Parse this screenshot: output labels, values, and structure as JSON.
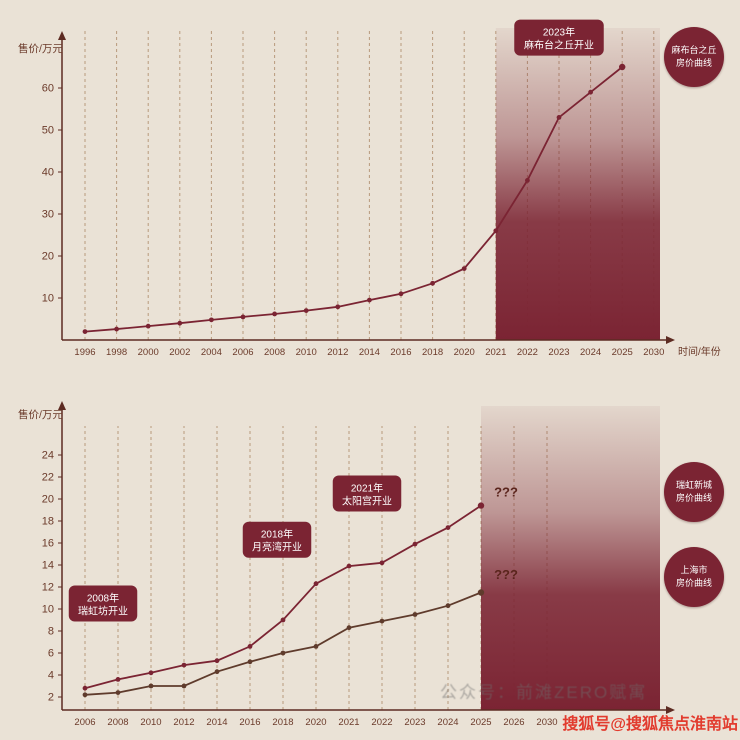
{
  "page": {
    "background": "#eae2d6"
  },
  "colors": {
    "maroon": "#7b2433",
    "brown": "#5f3b2c",
    "axis": "#5d2b22",
    "tick_text": "#6b3a2a",
    "gridline": "#a8835f",
    "watermark_red": "#e23b2e",
    "annotation_text": "#5a241c"
  },
  "legend": {
    "azabudai": "麻布台之丘\n房价曲线",
    "ruihong": "瑞虹新城\n房价曲线",
    "shanghai": "上海市\n房价曲线"
  },
  "watermarks": {
    "center": "公众号：前滩ZERO赋寓",
    "bottom_right": "搜狐号@搜狐焦点淮南站"
  },
  "chart_data": [
    {
      "type": "line",
      "ylabel": "售价/万元",
      "xlabel": "时间/年份",
      "grid": "vertical-dashed",
      "legend_position": "right",
      "x_ticks": [
        "1996",
        "1998",
        "2000",
        "2002",
        "2004",
        "2006",
        "2008",
        "2010",
        "2012",
        "2014",
        "2016",
        "2018",
        "2020",
        "2021",
        "2022",
        "2023",
        "2024",
        "2025",
        "2030"
      ],
      "y_ticks": [
        10,
        20,
        30,
        40,
        50,
        60
      ],
      "ylim": [
        0,
        70
      ],
      "highlight_region": {
        "from_tick": "2021",
        "to": "end",
        "color": "#7b2433"
      },
      "series": [
        {
          "name": "麻布台之丘房价曲线",
          "color": "#7b2433",
          "x": [
            "1996",
            "1998",
            "2000",
            "2002",
            "2004",
            "2006",
            "2008",
            "2010",
            "2012",
            "2014",
            "2016",
            "2018",
            "2020",
            "2021",
            "2022",
            "2023",
            "2024",
            "2025"
          ],
          "values": [
            2,
            2.6,
            3.3,
            4,
            4.8,
            5.5,
            6.2,
            7,
            7.9,
            9.5,
            11,
            13.5,
            17,
            26,
            38,
            53,
            59,
            65
          ]
        }
      ],
      "annotations": [
        {
          "x_tick": "2023",
          "y_value": 72,
          "lines": [
            "2023年",
            "麻布台之丘开业"
          ]
        }
      ]
    },
    {
      "type": "line",
      "ylabel": "售价/万元",
      "xlabel": "",
      "grid": "vertical-dashed",
      "legend_position": "right",
      "x_ticks": [
        "2006",
        "2008",
        "2010",
        "2012",
        "2014",
        "2016",
        "2018",
        "2020",
        "2021",
        "2022",
        "2023",
        "2024",
        "2025",
        "2026",
        "2030"
      ],
      "y_ticks": [
        2,
        4,
        6,
        8,
        10,
        12,
        14,
        16,
        18,
        20,
        22,
        24
      ],
      "ylim": [
        0,
        26
      ],
      "highlight_region": {
        "from_tick": "2025",
        "to": "end",
        "color": "#7b2433"
      },
      "series": [
        {
          "name": "瑞虹新城房价曲线",
          "color": "#7b2433",
          "x": [
            "2006",
            "2008",
            "2010",
            "2012",
            "2014",
            "2016",
            "2018",
            "2020",
            "2021",
            "2022",
            "2023",
            "2024",
            "2025"
          ],
          "values": [
            2.8,
            3.6,
            4.2,
            4.9,
            5.3,
            6.6,
            9,
            12.3,
            13.9,
            14.2,
            15.9,
            17.4,
            19.4
          ]
        },
        {
          "name": "上海市房价曲线",
          "color": "#5f3b2c",
          "x": [
            "2006",
            "2008",
            "2010",
            "2012",
            "2014",
            "2016",
            "2018",
            "2020",
            "2021",
            "2022",
            "2023",
            "2024",
            "2025"
          ],
          "values": [
            2.2,
            2.4,
            3,
            3,
            4.3,
            5.2,
            6,
            6.6,
            8.3,
            8.9,
            9.5,
            10.3,
            11.5
          ]
        }
      ],
      "annotations": [
        {
          "x_tick": "2008",
          "dx": -15,
          "y_value": 10.5,
          "lines": [
            "2008年",
            "瑞虹坊开业"
          ]
        },
        {
          "x_tick": "2018",
          "dx": -6,
          "y_value": 16.3,
          "lines": [
            "2018年",
            "月亮湾开业"
          ]
        },
        {
          "x_tick": "2021",
          "dx": 18,
          "y_value": 20.5,
          "lines": [
            "2021年",
            "太阳宫开业"
          ]
        },
        {
          "x_tick": "2026",
          "dx": -8,
          "y_value": 20.6,
          "text": "???"
        },
        {
          "x_tick": "2026",
          "dx": -8,
          "y_value": 13.1,
          "text": "???"
        }
      ]
    }
  ]
}
